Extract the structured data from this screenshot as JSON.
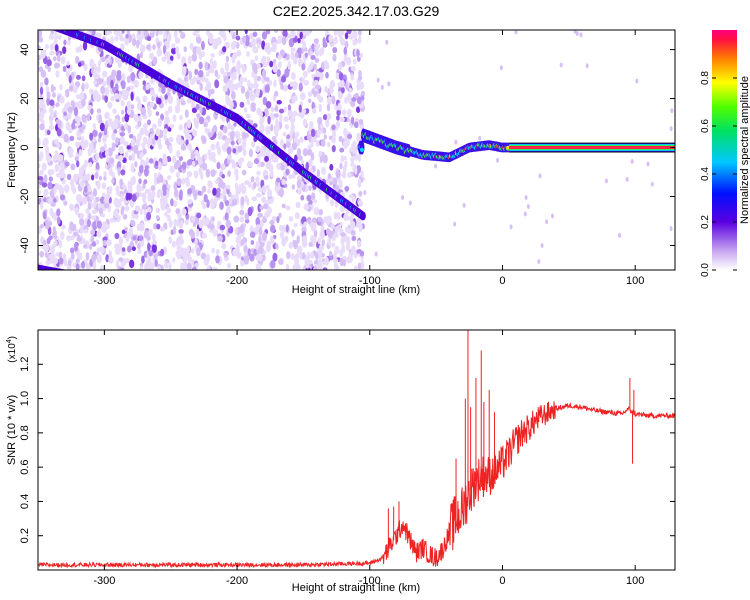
{
  "title": "C2E2.2025.342.17.03.G29",
  "chart_data": [
    {
      "type": "heatmap",
      "title": "C2E2.2025.342.17.03.G29",
      "xlabel": "Height of straight line (km)",
      "ylabel": "Frequency (Hz)",
      "xlim": [
        -350,
        130
      ],
      "ylim": [
        -50,
        48
      ],
      "x_ticks": [
        -300,
        -200,
        -100,
        0,
        100
      ],
      "y_ticks": [
        -40,
        -20,
        0,
        20,
        40
      ],
      "colorbar": {
        "label": "Normalized spectral amplitude",
        "range": [
          0,
          1
        ],
        "ticks": [
          "0.0",
          "0.2",
          "0.4",
          "0.6",
          "0.8"
        ]
      },
      "features": [
        {
          "name": "descending-trace",
          "x": [
            -350,
            -300,
            -250,
            -200,
            -150,
            -105
          ],
          "y": [
            52,
            42,
            26,
            12,
            -10,
            -28
          ]
        },
        {
          "name": "signal-band",
          "x": [
            -105,
            -80,
            -60,
            -40,
            -25,
            -10,
            0,
            130
          ],
          "y": [
            5,
            0,
            -3,
            -4,
            0,
            1,
            0,
            0
          ]
        },
        {
          "name": "bottom-trace",
          "x": [
            -350,
            -320
          ],
          "y": [
            -49,
            -52
          ]
        }
      ]
    },
    {
      "type": "line",
      "title": "",
      "xlabel": "Height of straight line (km)",
      "ylabel": "SNR (10 * v/v)",
      "y_scale_label": "(x10",
      "y_scale_exp": "4",
      "xlim": [
        -350,
        130
      ],
      "ylim": [
        0,
        1.4
      ],
      "x_ticks": [
        -300,
        -200,
        -100,
        0,
        100
      ],
      "y_ticks": [
        "0.2",
        "0.4",
        "0.6",
        "0.8",
        "1.0",
        "1.2"
      ],
      "series": [
        {
          "name": "SNR",
          "color": "#ee2222",
          "x": [
            -350,
            -250,
            -150,
            -100,
            -90,
            -80,
            -75,
            -70,
            -65,
            -60,
            -55,
            -50,
            -45,
            -40,
            -35,
            -30,
            -25,
            -20,
            -15,
            -10,
            -5,
            0,
            5,
            10,
            15,
            20,
            25,
            30,
            40,
            50,
            60,
            70,
            80,
            90,
            95,
            100,
            110,
            120,
            130
          ],
          "y": [
            0.03,
            0.03,
            0.03,
            0.04,
            0.07,
            0.2,
            0.27,
            0.18,
            0.1,
            0.13,
            0.09,
            0.07,
            0.12,
            0.22,
            0.3,
            0.35,
            0.45,
            0.52,
            0.55,
            0.55,
            0.58,
            0.62,
            0.68,
            0.75,
            0.8,
            0.83,
            0.87,
            0.9,
            0.94,
            0.96,
            0.95,
            0.93,
            0.92,
            0.91,
            0.94,
            0.91,
            0.9,
            0.9,
            0.9
          ]
        },
        {
          "name": "spikes",
          "x": [
            -86,
            -82,
            -78,
            -35,
            -28,
            -26,
            -24,
            -20,
            -16,
            -14,
            -10,
            -6,
            96,
            98,
            99
          ],
          "y": [
            0.36,
            0.37,
            0.4,
            0.65,
            1.0,
            1.4,
            0.95,
            1.12,
            1.28,
            0.98,
            1.05,
            0.92,
            1.12,
            0.62,
            1.05
          ]
        }
      ]
    }
  ]
}
